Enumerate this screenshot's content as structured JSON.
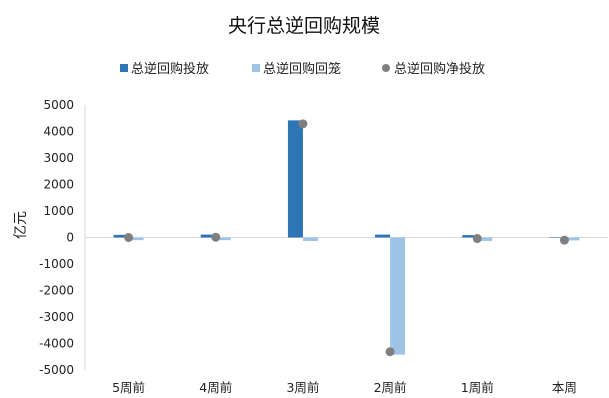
{
  "chart_data": {
    "type": "bar",
    "title": "央行总逆回购规模",
    "ylabel": "亿元",
    "xlabel": "",
    "categories": [
      "5周前",
      "4周前",
      "3周前",
      "2周前",
      "1周前",
      "本周"
    ],
    "ylim": [
      -5000,
      5000
    ],
    "yticks": [
      5000,
      4000,
      3000,
      2000,
      1000,
      0,
      -1000,
      -2000,
      -3000,
      -4000,
      -5000
    ],
    "grid": false,
    "legend_position": "top",
    "series": [
      {
        "name": "总逆回购投放",
        "kind": "bar",
        "color": "#2E75B6",
        "values": [
          100,
          110,
          4420,
          110,
          90,
          10
        ]
      },
      {
        "name": "总逆回购回笼",
        "kind": "bar",
        "color": "#9DC3E6",
        "values": [
          -100,
          -100,
          -130,
          -4420,
          -130,
          -110
        ]
      },
      {
        "name": "总逆回购净投放",
        "kind": "scatter",
        "color": "#7F7F7F",
        "values": [
          0,
          10,
          4290,
          -4310,
          -40,
          -100
        ]
      }
    ]
  }
}
